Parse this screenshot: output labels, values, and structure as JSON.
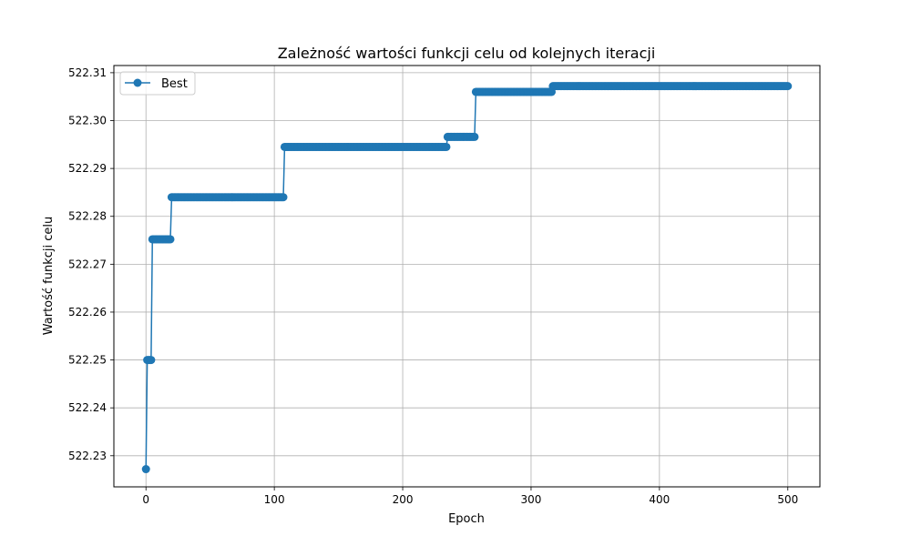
{
  "colors": {
    "series": "#1f77b4",
    "grid": "#b0b0b0",
    "axis": "#000000",
    "legend_border": "#cccccc"
  },
  "chart_data": {
    "type": "line",
    "title": "Zależność wartości funkcji celu od kolejnych iteracji",
    "xlabel": "Epoch",
    "ylabel": "Wartość funkcji celu",
    "xlim": [
      -25,
      525
    ],
    "ylim": [
      522.2235,
      522.3115
    ],
    "x_ticks": [
      0,
      100,
      200,
      300,
      400,
      500
    ],
    "y_ticks": [
      522.23,
      522.24,
      522.25,
      522.26,
      522.27,
      522.28,
      522.29,
      522.3,
      522.31
    ],
    "y_tick_labels": [
      "522.23",
      "522.24",
      "522.25",
      "522.26",
      "522.27",
      "522.28",
      "522.29",
      "522.30",
      "522.31"
    ],
    "grid": true,
    "legend": "upper-left",
    "series": [
      {
        "name": "Best",
        "marker": "circle",
        "steps": [
          {
            "x_start": 0,
            "x_end": 0,
            "y": 522.2272
          },
          {
            "x_start": 1,
            "x_end": 4,
            "y": 522.25
          },
          {
            "x_start": 5,
            "x_end": 19,
            "y": 522.2752
          },
          {
            "x_start": 20,
            "x_end": 107,
            "y": 522.284
          },
          {
            "x_start": 108,
            "x_end": 234,
            "y": 522.2945
          },
          {
            "x_start": 235,
            "x_end": 256,
            "y": 522.2966
          },
          {
            "x_start": 257,
            "x_end": 316,
            "y": 522.306
          },
          {
            "x_start": 317,
            "x_end": 500,
            "y": 522.3072
          }
        ]
      }
    ]
  }
}
